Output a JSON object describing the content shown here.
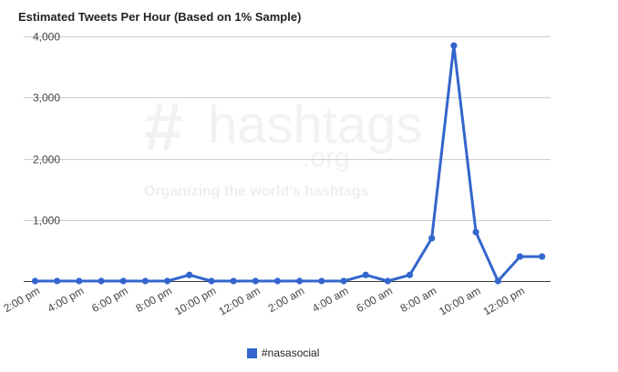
{
  "chart_data": {
    "type": "line",
    "title": "Estimated Tweets Per Hour (Based on 1% Sample)",
    "x": [
      "2:00 pm",
      "3:00 pm",
      "4:00 pm",
      "5:00 pm",
      "6:00 pm",
      "7:00 pm",
      "8:00 pm",
      "9:00 pm",
      "10:00 pm",
      "11:00 pm",
      "12:00 am",
      "1:00 am",
      "2:00 am",
      "3:00 am",
      "4:00 am",
      "5:00 am",
      "6:00 am",
      "7:00 am",
      "8:00 am",
      "9:00 am",
      "10:00 am",
      "11:00 am",
      "12:00 pm",
      "1:00 pm"
    ],
    "x_tick_labels": [
      "2:00 pm",
      "4:00 pm",
      "6:00 pm",
      "8:00 pm",
      "10:00 pm",
      "12:00 am",
      "2:00 am",
      "4:00 am",
      "6:00 am",
      "8:00 am",
      "10:00 am",
      "12:00 pm"
    ],
    "y_tick_labels": [
      "1,000",
      "2,000",
      "3,000",
      "4,000"
    ],
    "series": [
      {
        "name": "#nasasocial",
        "color": "#3366cc",
        "values": [
          0,
          0,
          0,
          0,
          0,
          0,
          0,
          100,
          0,
          0,
          0,
          0,
          0,
          0,
          0,
          100,
          0,
          100,
          700,
          3850,
          800,
          0,
          400,
          400
        ]
      }
    ],
    "ylim": [
      0,
      4000
    ],
    "grid": true,
    "legend": "bottom"
  },
  "watermark": {
    "hash": "#",
    "name": "hashtags",
    "org": ".org",
    "tagline": "Organizing the world's hashtags"
  }
}
